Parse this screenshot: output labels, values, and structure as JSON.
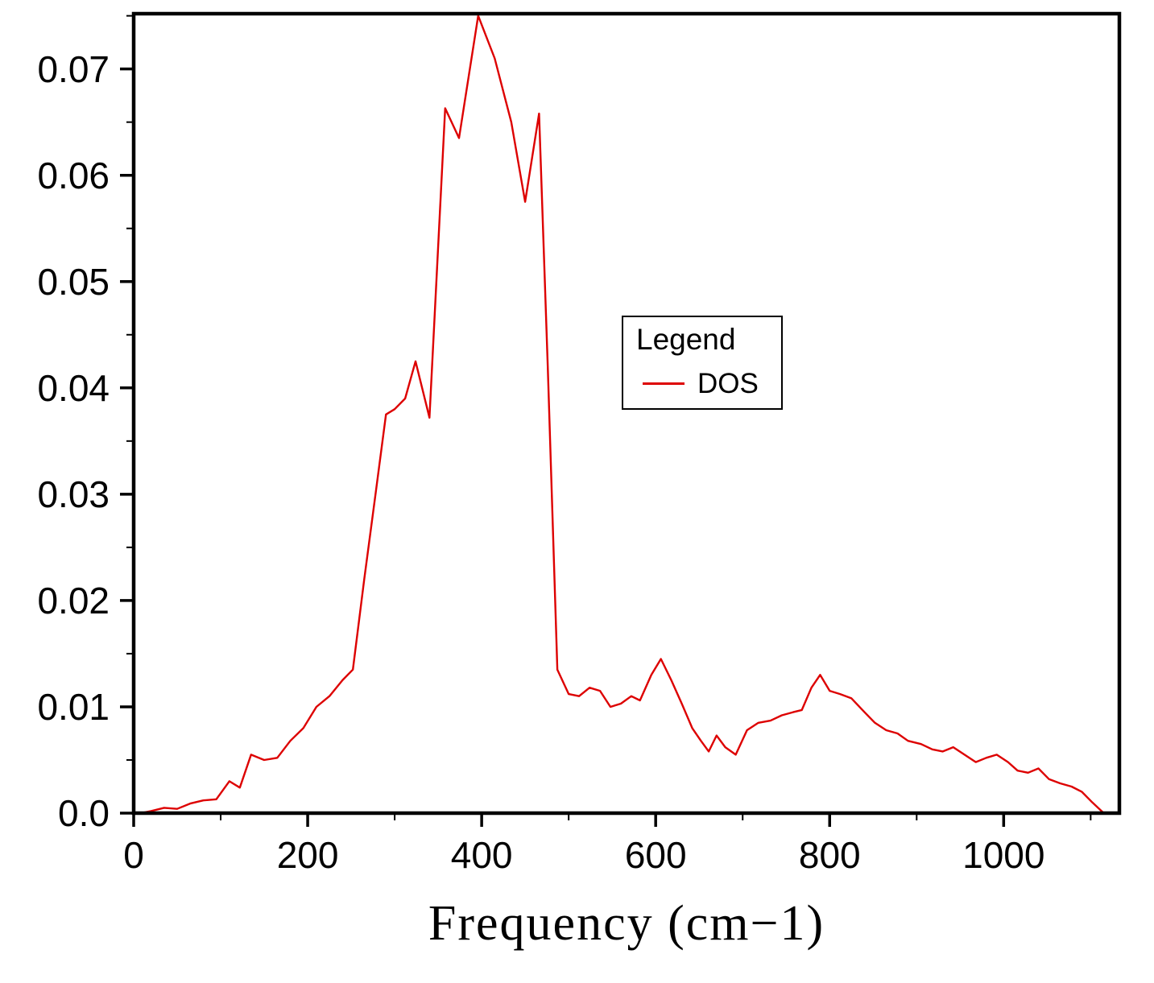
{
  "figure": {
    "background_color": "#ffffff",
    "frame_color": "#000000"
  },
  "chart_data": {
    "type": "line",
    "title": "",
    "xlabel": "Frequency (cm−1)",
    "ylabel": "",
    "xlim": [
      0,
      1133
    ],
    "ylim": [
      0,
      0.0752
    ],
    "xticks": [
      0,
      200,
      400,
      600,
      800,
      1000
    ],
    "x_tick_labels": [
      "0",
      "200",
      "400",
      "600",
      "800",
      "1000"
    ],
    "yticks": [
      0,
      0.01,
      0.02,
      0.03,
      0.04,
      0.05,
      0.06,
      0.07
    ],
    "y_tick_labels": [
      "0.0",
      "0.01",
      "0.02",
      "0.03",
      "0.04",
      "0.05",
      "0.06",
      "0.07"
    ],
    "x_minor_step": 100,
    "y_minor_step": 0.005,
    "grid": false,
    "legend": {
      "title": "Legend",
      "entries": [
        "DOS"
      ],
      "position": "upper-middle-right"
    },
    "series": [
      {
        "name": "DOS",
        "color": "#dd0000",
        "x": [
          8,
          20,
          35,
          50,
          65,
          80,
          95,
          110,
          122,
          135,
          150,
          165,
          180,
          195,
          210,
          225,
          240,
          252,
          265,
          278,
          290,
          300,
          312,
          324,
          340,
          358,
          374,
          396,
          415,
          434,
          450,
          466,
          476,
          487,
          500,
          512,
          524,
          536,
          548,
          560,
          572,
          582,
          595,
          606,
          618,
          630,
          642,
          652,
          661,
          670,
          680,
          692,
          705,
          718,
          732,
          745,
          758,
          768,
          779,
          789,
          800,
          812,
          825,
          840,
          852,
          865,
          878,
          890,
          905,
          918,
          930,
          942,
          955,
          968,
          980,
          992,
          1005,
          1016,
          1028,
          1040,
          1052,
          1065,
          1078,
          1090,
          1102,
          1115
        ],
        "y": [
          0.0,
          0.0002,
          0.0005,
          0.0004,
          0.0009,
          0.0012,
          0.0013,
          0.003,
          0.0024,
          0.0055,
          0.005,
          0.0052,
          0.0068,
          0.008,
          0.01,
          0.011,
          0.0125,
          0.0135,
          0.022,
          0.03,
          0.0375,
          0.038,
          0.039,
          0.0425,
          0.0372,
          0.0663,
          0.0635,
          0.075,
          0.071,
          0.065,
          0.0575,
          0.0658,
          0.042,
          0.0135,
          0.0112,
          0.011,
          0.0118,
          0.0115,
          0.01,
          0.0103,
          0.011,
          0.0106,
          0.013,
          0.0145,
          0.0125,
          0.0103,
          0.008,
          0.0068,
          0.0058,
          0.0073,
          0.0062,
          0.0055,
          0.0078,
          0.0085,
          0.0087,
          0.0092,
          0.0095,
          0.0097,
          0.0118,
          0.013,
          0.0115,
          0.0112,
          0.0108,
          0.0095,
          0.0085,
          0.0078,
          0.0075,
          0.0068,
          0.0065,
          0.006,
          0.0058,
          0.0062,
          0.0055,
          0.0048,
          0.0052,
          0.0055,
          0.0048,
          0.004,
          0.0038,
          0.0042,
          0.0032,
          0.0028,
          0.0025,
          0.002,
          0.001,
          0.0
        ]
      }
    ]
  }
}
